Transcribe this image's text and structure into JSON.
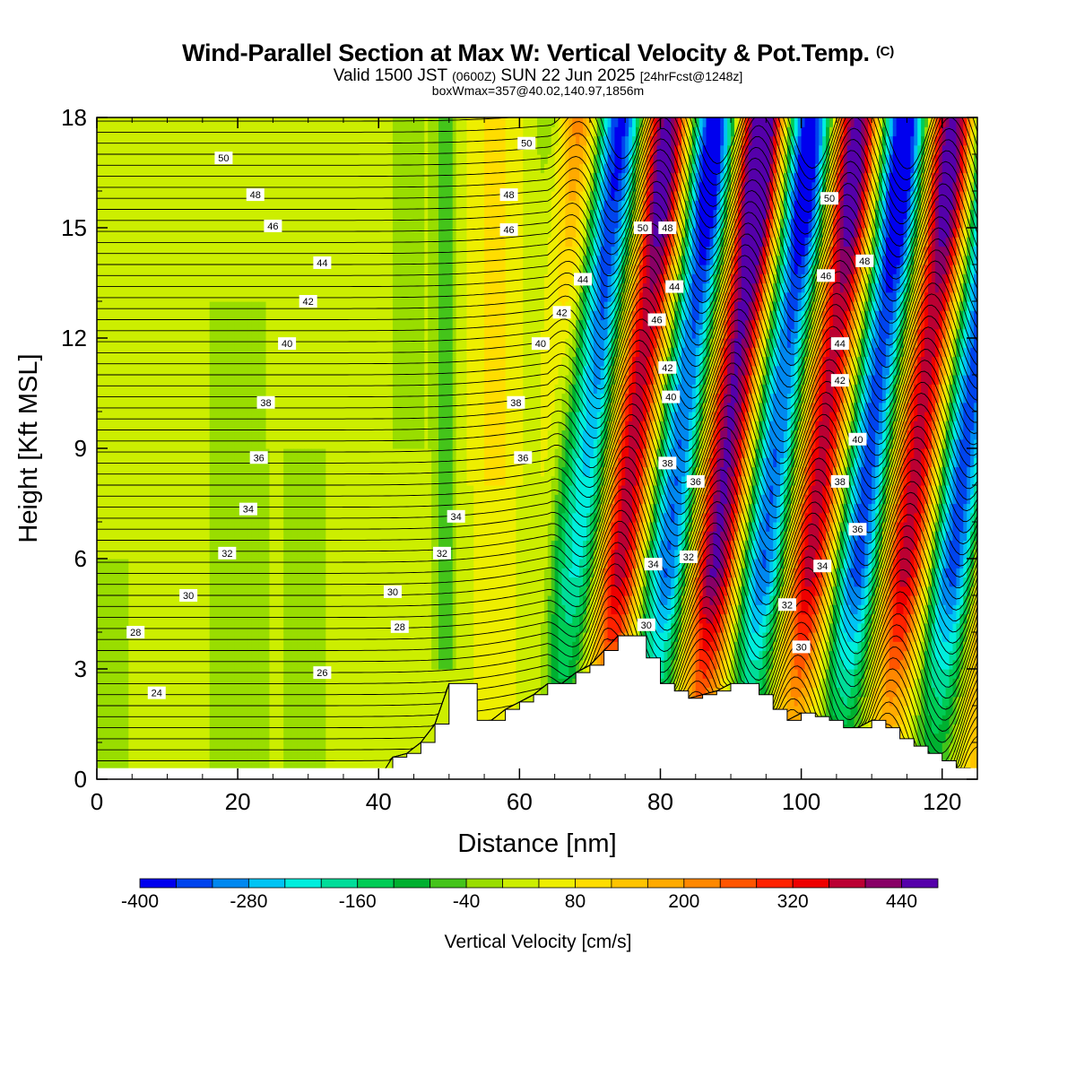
{
  "title": {
    "line1": "Wind-Parallel Section at Max W: Vertical Velocity & Pot.Temp.",
    "copyright": "(C)",
    "line2a": "Valid 1500 JST",
    "line2b": "(0600Z)",
    "line2c": "SUN 22 Jun 2025",
    "line2d": "[24hrFcst@1248z]",
    "line3": "boxWmax=357@40.02,140.97,1856m"
  },
  "chart_data": {
    "type": "heatmap",
    "xlabel": "Distance [nm]",
    "ylabel": "Height [Kft MSL]",
    "xlim": [
      0,
      125
    ],
    "ylim": [
      0,
      18
    ],
    "xticks": [
      0,
      20,
      40,
      60,
      80,
      100,
      120
    ],
    "yticks": [
      0,
      3,
      6,
      9,
      12,
      15,
      18
    ],
    "colorbar": {
      "label": "Vertical Velocity [cm/s]",
      "ticks": [
        -400,
        -280,
        -160,
        -40,
        80,
        200,
        320,
        440
      ],
      "levels": [
        -400,
        -360,
        -320,
        -280,
        -240,
        -200,
        -160,
        -120,
        -80,
        -40,
        0,
        40,
        80,
        120,
        160,
        200,
        240,
        280,
        320,
        360,
        400,
        440,
        480
      ],
      "colors": [
        "#0000ee",
        "#0044ee",
        "#0088f0",
        "#00c4f4",
        "#00eedd",
        "#00dd99",
        "#00cc55",
        "#00b030",
        "#44c41a",
        "#99dd00",
        "#ccee00",
        "#eeee00",
        "#ffdd00",
        "#ffc400",
        "#ffaa00",
        "#ff8800",
        "#ff5500",
        "#ff2200",
        "#ee0000",
        "#bb0033",
        "#880066",
        "#5500aa"
      ]
    },
    "terrain": [
      [
        40,
        0
      ],
      [
        42,
        0.6
      ],
      [
        44,
        0.7
      ],
      [
        46,
        1.0
      ],
      [
        48,
        1.5
      ],
      [
        50,
        2.6
      ],
      [
        52,
        2.6
      ],
      [
        54,
        1.6
      ],
      [
        56,
        1.6
      ],
      [
        58,
        1.9
      ],
      [
        60,
        2.1
      ],
      [
        62,
        2.3
      ],
      [
        64,
        2.6
      ],
      [
        66,
        2.6
      ],
      [
        68,
        2.9
      ],
      [
        70,
        3.1
      ],
      [
        72,
        3.5
      ],
      [
        74,
        3.9
      ],
      [
        76,
        3.9
      ],
      [
        78,
        3.3
      ],
      [
        80,
        2.6
      ],
      [
        82,
        2.4
      ],
      [
        84,
        2.2
      ],
      [
        86,
        2.3
      ],
      [
        88,
        2.4
      ],
      [
        90,
        2.6
      ],
      [
        92,
        2.6
      ],
      [
        94,
        2.3
      ],
      [
        96,
        1.9
      ],
      [
        98,
        1.6
      ],
      [
        100,
        1.8
      ],
      [
        102,
        1.7
      ],
      [
        104,
        1.6
      ],
      [
        106,
        1.4
      ],
      [
        108,
        1.4
      ],
      [
        110,
        1.6
      ],
      [
        112,
        1.4
      ],
      [
        114,
        1.1
      ],
      [
        116,
        0.9
      ],
      [
        118,
        0.7
      ],
      [
        120,
        0.5
      ],
      [
        122,
        0.3
      ],
      [
        124,
        0.1
      ],
      [
        125,
        0
      ]
    ],
    "theta_labels": [
      {
        "text": "50",
        "x": 18,
        "y": 16.9
      },
      {
        "text": "48",
        "x": 22.5,
        "y": 15.9
      },
      {
        "text": "46",
        "x": 25,
        "y": 15.05
      },
      {
        "text": "44",
        "x": 32,
        "y": 14.05
      },
      {
        "text": "42",
        "x": 30,
        "y": 13.0
      },
      {
        "text": "40",
        "x": 27,
        "y": 11.85
      },
      {
        "text": "38",
        "x": 24,
        "y": 10.25
      },
      {
        "text": "36",
        "x": 23,
        "y": 8.75
      },
      {
        "text": "34",
        "x": 21.5,
        "y": 7.35
      },
      {
        "text": "32",
        "x": 18.5,
        "y": 6.15
      },
      {
        "text": "30",
        "x": 13,
        "y": 5.0
      },
      {
        "text": "28",
        "x": 5.5,
        "y": 4.0
      },
      {
        "text": "24",
        "x": 8.5,
        "y": 2.35
      },
      {
        "text": "26",
        "x": 32,
        "y": 2.9
      },
      {
        "text": "28",
        "x": 43,
        "y": 4.15
      },
      {
        "text": "30",
        "x": 42,
        "y": 5.1
      },
      {
        "text": "32",
        "x": 49,
        "y": 6.15
      },
      {
        "text": "34",
        "x": 51,
        "y": 7.15
      },
      {
        "text": "36",
        "x": 60.5,
        "y": 8.75
      },
      {
        "text": "38",
        "x": 59.5,
        "y": 10.25
      },
      {
        "text": "40",
        "x": 63,
        "y": 11.85
      },
      {
        "text": "42",
        "x": 66,
        "y": 12.7
      },
      {
        "text": "44",
        "x": 69,
        "y": 13.6
      },
      {
        "text": "46",
        "x": 58.5,
        "y": 14.95
      },
      {
        "text": "48",
        "x": 58.5,
        "y": 15.9
      },
      {
        "text": "50",
        "x": 61,
        "y": 17.3
      },
      {
        "text": "50",
        "x": 77.5,
        "y": 15.0
      },
      {
        "text": "48",
        "x": 81,
        "y": 15.0
      },
      {
        "text": "44",
        "x": 82,
        "y": 13.4
      },
      {
        "text": "46",
        "x": 79.5,
        "y": 12.5
      },
      {
        "text": "42",
        "x": 81,
        "y": 11.2
      },
      {
        "text": "40",
        "x": 81.5,
        "y": 10.4
      },
      {
        "text": "38",
        "x": 81,
        "y": 8.6
      },
      {
        "text": "36",
        "x": 85,
        "y": 8.1
      },
      {
        "text": "34",
        "x": 79,
        "y": 5.85
      },
      {
        "text": "32",
        "x": 84,
        "y": 6.05
      },
      {
        "text": "30",
        "x": 78,
        "y": 4.2
      },
      {
        "text": "50",
        "x": 104,
        "y": 15.8
      },
      {
        "text": "48",
        "x": 109,
        "y": 14.1
      },
      {
        "text": "46",
        "x": 103.5,
        "y": 13.7
      },
      {
        "text": "44",
        "x": 105.5,
        "y": 11.85
      },
      {
        "text": "42",
        "x": 105.5,
        "y": 10.85
      },
      {
        "text": "40",
        "x": 108,
        "y": 9.25
      },
      {
        "text": "38",
        "x": 105.5,
        "y": 8.1
      },
      {
        "text": "36",
        "x": 108,
        "y": 6.8
      },
      {
        "text": "34",
        "x": 103,
        "y": 5.8
      },
      {
        "text": "32",
        "x": 98,
        "y": 4.75
      },
      {
        "text": "30",
        "x": 100,
        "y": 3.6
      }
    ]
  }
}
